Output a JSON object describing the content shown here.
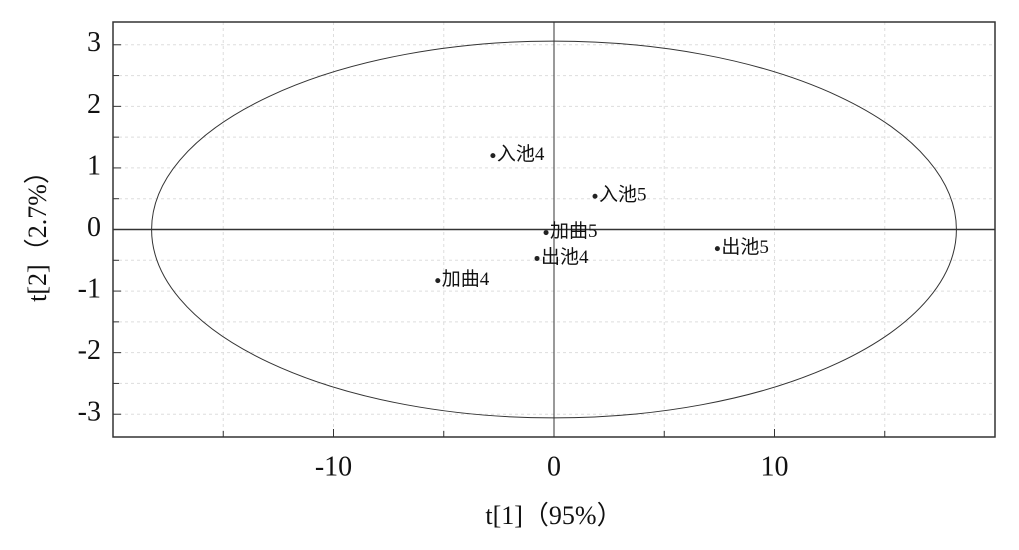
{
  "chart_data": {
    "type": "scatter",
    "x_label": "t[1]（95%）",
    "y_label": "t[2]（2.7%）",
    "labels": [
      "入池4",
      "入池5",
      "加曲5",
      "出池4",
      "加曲4",
      "出池5"
    ],
    "x": [
      -2.77,
      1.86,
      -0.36,
      -0.77,
      -5.27,
      7.41
    ],
    "values": [
      1.2,
      0.54,
      -0.05,
      -0.47,
      -0.83,
      -0.31
    ],
    "color": "#222222",
    "xlim": [
      -20,
      20
    ],
    "ylim": [
      -3.37,
      3.37
    ],
    "xticks": [
      -10,
      0,
      10
    ],
    "yticks": [
      -3,
      -2,
      -1,
      0,
      1,
      2,
      3
    ],
    "xminor": [
      -15,
      -5,
      5,
      15
    ],
    "yminor": [
      -2.5,
      -1.5,
      -0.5,
      0.5,
      1.5,
      2.5
    ],
    "ellipse": {
      "rx": 18.25,
      "ry": 3.06
    },
    "grid": true
  }
}
